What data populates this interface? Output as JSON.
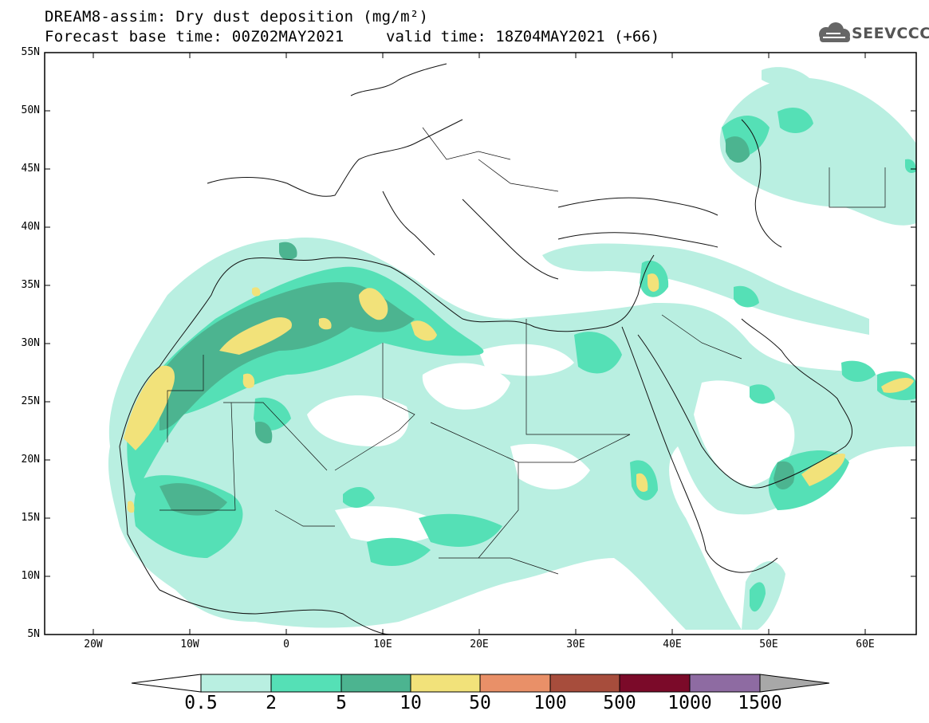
{
  "header": {
    "title_line1": "DREAM8-assim: Dry dust deposition (mg/m²)",
    "title_line2": "Forecast base time: 00Z02MAY2021",
    "valid_time": "valid time: 18Z04MAY2021 (+66)",
    "logo_text": "SEEVCCC",
    "logo_icon": "cloud-icon"
  },
  "map": {
    "lat_labels": [
      "55N",
      "50N",
      "45N",
      "40N",
      "35N",
      "30N",
      "25N",
      "20N",
      "15N",
      "10N",
      "5N"
    ],
    "lon_labels": [
      "20W",
      "10W",
      "0",
      "10E",
      "20E",
      "30E",
      "40E",
      "50E",
      "60E"
    ]
  },
  "colorbar": {
    "labels": [
      "0.5",
      "2",
      "5",
      "10",
      "50",
      "100",
      "500",
      "1000",
      "1500"
    ],
    "colors": [
      "#b9efe1",
      "#55e0b6",
      "#4cb490",
      "#f2e27a",
      "#e99068",
      "#a74d3c",
      "#7b0a29",
      "#8e6ba2"
    ],
    "under_color": "#ffffff",
    "over_color": "#a8a8a8"
  }
}
